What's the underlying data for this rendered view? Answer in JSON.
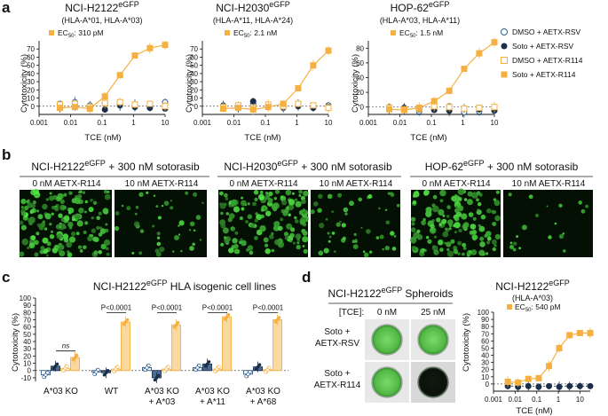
{
  "panel_a": {
    "label": "a",
    "plots": [
      {
        "title": "NCI-H2122",
        "title_sup": "eGFP",
        "subtitle": "(HLA-A*01, HLA-A*03)",
        "ec50": "310 pM"
      },
      {
        "title": "NCI-H2030",
        "title_sup": "eGFP",
        "subtitle": "(HLA-A*11, HLA-A*24)",
        "ec50": "2.1 nM"
      },
      {
        "title": "HOP-62",
        "title_sup": "eGFP",
        "subtitle": "(HLA-A*03, HLA-A*11)",
        "ec50": "1.5 nM"
      }
    ],
    "ec50_prefix": "EC",
    "ec50_sub": "50",
    "ec50_sep": ": ",
    "ylabel": "Cytotoxicity (%)",
    "xlabel": "TCE (nM)",
    "legend": [
      "DMSO + AETX-RSV",
      "Soto + AETX-RSV",
      "DMSO + AETX-R114",
      "Soto + AETX-R114"
    ]
  },
  "panel_b": {
    "label": "b",
    "groups": [
      {
        "title": "NCI-H2122",
        "sup": "eGFP",
        "suffix": " + 300 nM sotorasib"
      },
      {
        "title": "NCI-H2030",
        "sup": "eGFP",
        "suffix": " + 300 nM sotorasib"
      },
      {
        "title": "HOP-62",
        "sup": "eGFP",
        "suffix": " + 300 nM sotorasib"
      }
    ],
    "conditions": [
      "0 nM AETX-R114",
      "10 nM AETX-R114"
    ]
  },
  "panel_c": {
    "label": "c",
    "title": "NCI-H2122",
    "title_sup": "eGFP",
    "title_suffix": " HLA isogenic cell lines",
    "ylabel": "Cytotoxicity (%)",
    "ns_label": "ns",
    "pvalue": "P<0.0001",
    "groups": [
      {
        "line1": "A*03 KO",
        "line2": ""
      },
      {
        "line1": "WT",
        "line2": ""
      },
      {
        "line1": "A*03 KO",
        "line2": "+ A*03"
      },
      {
        "line1": "A*03 KO",
        "line2": "+ A*11"
      },
      {
        "line1": "A*03 KO",
        "line2": "+ A*68"
      }
    ]
  },
  "panel_d": {
    "label": "d",
    "spheroid_title": "NCI-H2122",
    "spheroid_sup": "eGFP",
    "spheroid_suffix": " Spheroids",
    "tce_header": "[TCE]:",
    "columns": [
      "0 nM",
      "25 nM"
    ],
    "rows": [
      {
        "line1": "Soto +",
        "line2": "AETX-RSV"
      },
      {
        "line1": "Soto +",
        "line2": "AETX-R114"
      }
    ],
    "plot_title": "NCI-H2122",
    "plot_sup": "eGFP",
    "plot_subtitle": "(HLA-A*03)",
    "ec50": "540 pM",
    "ylabel": "Cytotoxicity (%)",
    "xlabel": "TCE (nM)"
  },
  "colors": {
    "orange": "#f5b041",
    "navy": "#1b2f4a",
    "blue": "#2e5a88",
    "light_blue": "#a9c4de"
  },
  "chart_data": [
    {
      "type": "line",
      "title": "NCI-H2122 eGFP",
      "xlabel": "TCE (nM)",
      "ylabel": "Cytotoxicity (%)",
      "x_scale": "log",
      "xlim": [
        0.001,
        10
      ],
      "ylim": [
        -10,
        80
      ],
      "yticks": [
        0,
        10,
        20,
        30,
        40,
        50,
        60,
        70
      ],
      "xticks": [
        "0.001",
        "0.01",
        "0.1",
        "1",
        "10"
      ],
      "x": [
        0.0046,
        0.0137,
        0.041,
        0.123,
        0.37,
        1.1,
        3.3,
        10
      ],
      "series": [
        {
          "name": "DMSO + AETX-RSV",
          "values": [
            3,
            5,
            1,
            4,
            2,
            2,
            0,
            5
          ]
        },
        {
          "name": "Soto + AETX-RSV",
          "values": [
            -1,
            0,
            -2,
            -4,
            1,
            -1,
            -2,
            -3
          ]
        },
        {
          "name": "DMSO + AETX-R114",
          "values": [
            2,
            3,
            -1,
            4,
            5,
            2,
            3,
            0
          ]
        },
        {
          "name": "Soto + AETX-R114",
          "values": [
            -2,
            -1,
            -3,
            12,
            38,
            62,
            71,
            75
          ]
        }
      ]
    },
    {
      "type": "line",
      "title": "NCI-H2030 eGFP",
      "xlabel": "TCE (nM)",
      "ylabel": "Cytotoxicity (%)",
      "x_scale": "log",
      "xlim": [
        0.001,
        10
      ],
      "ylim": [
        -10,
        80
      ],
      "yticks": [
        0,
        10,
        20,
        30,
        40,
        50,
        60,
        70
      ],
      "xticks": [
        "0.001",
        "0.01",
        "0.1",
        "1",
        "10"
      ],
      "x": [
        0.0046,
        0.0137,
        0.041,
        0.123,
        0.37,
        1.1,
        3.3,
        10
      ],
      "series": [
        {
          "name": "DMSO + AETX-RSV",
          "values": [
            1,
            -1,
            3,
            0,
            -2,
            2,
            -1,
            1
          ]
        },
        {
          "name": "Soto + AETX-RSV",
          "values": [
            0,
            -2,
            6,
            1,
            -1,
            0,
            -2,
            -1
          ]
        },
        {
          "name": "DMSO + AETX-R114",
          "values": [
            -1,
            1,
            -2,
            2,
            0,
            3,
            1,
            -2
          ]
        },
        {
          "name": "Soto + AETX-R114",
          "values": [
            -3,
            -2,
            -4,
            -1,
            3,
            22,
            50,
            68
          ]
        }
      ]
    },
    {
      "type": "line",
      "title": "HOP-62 eGFP",
      "xlabel": "TCE (nM)",
      "ylabel": "Cytotoxicity (%)",
      "x_scale": "log",
      "xlim": [
        0.001,
        10
      ],
      "ylim": [
        -10,
        90
      ],
      "yticks": [
        0,
        20,
        40,
        60,
        80
      ],
      "xticks": [
        "0.001",
        "0.01",
        "0.1",
        "1",
        "10"
      ],
      "x": [
        0.0046,
        0.0137,
        0.041,
        0.123,
        0.37,
        1.1,
        3.3,
        10
      ],
      "series": [
        {
          "name": "DMSO + AETX-RSV",
          "values": [
            0,
            -2,
            -6,
            -3,
            1,
            -7,
            -6,
            -5
          ]
        },
        {
          "name": "Soto + AETX-RSV",
          "values": [
            -2,
            -1,
            -3,
            -4,
            -5,
            -2,
            -3,
            -4
          ]
        },
        {
          "name": "DMSO + AETX-R114",
          "values": [
            -1,
            -3,
            -2,
            1,
            0,
            -2,
            -1,
            0
          ]
        },
        {
          "name": "Soto + AETX-R114",
          "values": [
            -3,
            -4,
            -1,
            8,
            22,
            52,
            73,
            88
          ]
        }
      ]
    },
    {
      "type": "bar",
      "title": "NCI-H2122 eGFP HLA isogenic cell lines",
      "ylabel": "Cytotoxicity (%)",
      "ylim": [
        -15,
        100
      ],
      "yticks": [
        -10,
        0,
        10,
        20,
        30,
        40,
        50,
        60,
        70,
        80,
        90,
        100
      ],
      "categories": [
        "A*03 KO",
        "WT",
        "A*03 KO + A*03",
        "A*03 KO + A*11",
        "A*03 KO + A*68"
      ],
      "series": [
        {
          "name": "DMSO + AETX-RSV",
          "values": [
            -6,
            -2,
            4,
            4,
            -5
          ]
        },
        {
          "name": "Soto + AETX-RSV",
          "values": [
            6,
            -3,
            -10,
            9,
            5
          ]
        },
        {
          "name": "DMSO + AETX-R114",
          "values": [
            3,
            2,
            2,
            2,
            1
          ]
        },
        {
          "name": "Soto + AETX-R114",
          "values": [
            18,
            67,
            63,
            74,
            70
          ]
        }
      ]
    },
    {
      "type": "line",
      "title": "NCI-H2122 eGFP (HLA-A*03)",
      "xlabel": "TCE (nM)",
      "ylabel": "Cytotoxicity (%)",
      "x_scale": "log",
      "xlim": [
        0.001,
        30
      ],
      "ylim": [
        -10,
        100
      ],
      "yticks": [
        0,
        10,
        20,
        30,
        40,
        50,
        60,
        70,
        80,
        90,
        100
      ],
      "xticks": [
        "0.001",
        "0.01",
        "0.1",
        "1",
        "10"
      ],
      "x": [
        0.0046,
        0.0137,
        0.041,
        0.123,
        0.37,
        1.1,
        3.3,
        10,
        30
      ],
      "series": [
        {
          "name": "Soto + AETX-RSV",
          "values": [
            -3,
            -4,
            -3,
            -4,
            -3,
            -4,
            -3,
            -3,
            -3
          ]
        },
        {
          "name": "Soto + AETX-R114",
          "values": [
            3,
            2,
            7,
            8,
            25,
            50,
            68,
            71,
            71
          ]
        }
      ]
    }
  ]
}
